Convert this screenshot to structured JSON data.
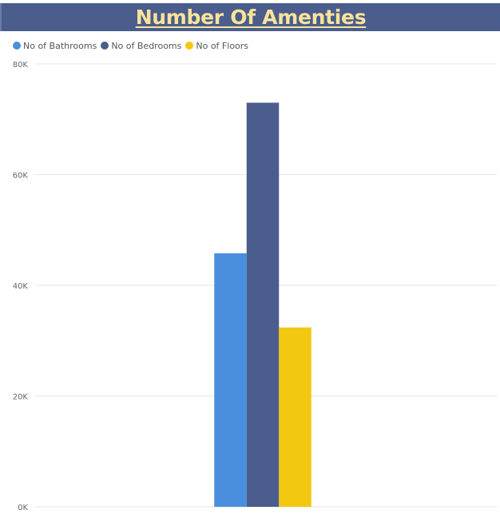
{
  "chart_data": {
    "type": "bar",
    "title": "Number Of Amenties",
    "categories": [
      ""
    ],
    "series": [
      {
        "name": "No of Bathrooms",
        "values": [
          45800
        ],
        "color": "#4a8ede"
      },
      {
        "name": "No of Bedrooms",
        "values": [
          73000
        ],
        "color": "#4a5d8c"
      },
      {
        "name": "No of Floors",
        "values": [
          32400
        ],
        "color": "#f2c811"
      }
    ],
    "ylim": [
      0,
      80000
    ],
    "yticks": [
      {
        "value": 0,
        "label": "0K"
      },
      {
        "value": 20000,
        "label": "20K"
      },
      {
        "value": 40000,
        "label": "40K"
      },
      {
        "value": 60000,
        "label": "60K"
      },
      {
        "value": 80000,
        "label": "80K"
      }
    ],
    "grid": true,
    "legend_position": "top-left"
  }
}
